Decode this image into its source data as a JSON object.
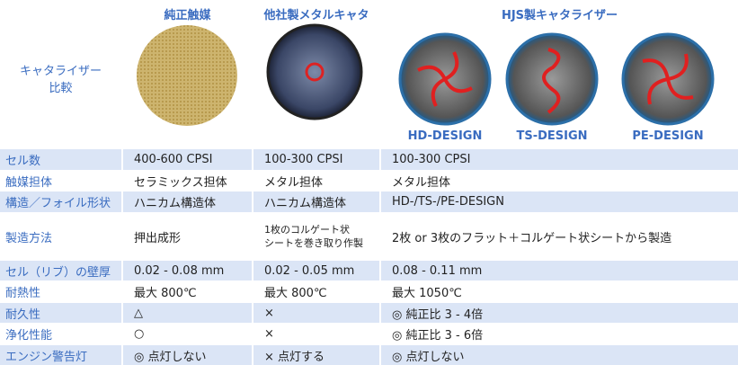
{
  "header": {
    "corner": [
      "キャタライザー",
      "比較"
    ],
    "columns": [
      "純正触媒",
      "他社製メタルキャタ",
      "HJS製キャタライザー"
    ],
    "designs": [
      "HD-DESIGN",
      "TS-DESIGN",
      "PE-DESIGN"
    ]
  },
  "table": {
    "rows": [
      [
        "セル数",
        "400-600 CPSI",
        "100-300 CPSI",
        "100-300 CPSI"
      ],
      [
        "触媒担体",
        "セラミックス担体",
        "メタル担体",
        "メタル担体"
      ],
      [
        "構造／フォイル形状",
        "ハニカム構造体",
        "ハニカム構造体",
        "HD-/TS-/PE-DESIGN"
      ],
      [
        "製造方法",
        "押出成形",
        [
          "1枚のコルゲート状",
          "シートを巻き取り作製"
        ],
        "2枚 or 3枚のフラット＋コルゲート状シートから製造"
      ],
      [
        "セル（リブ）の壁厚",
        "0.02 - 0.08 mm",
        "0.02 - 0.05 mm",
        "0.08 - 0.11 mm"
      ],
      [
        "耐熱性",
        "最大 800℃",
        "最大 800℃",
        "最大 1050℃"
      ],
      [
        "耐久性",
        "△",
        "×",
        "◎ 純正比 3 - 4倍"
      ],
      [
        "浄化性能",
        "○",
        "×",
        "◎ 純正比 3 - 6倍"
      ],
      [
        "エンジン警告灯",
        "◎ 点灯しない",
        "× 点灯する",
        "◎ 点灯しない"
      ]
    ]
  }
}
